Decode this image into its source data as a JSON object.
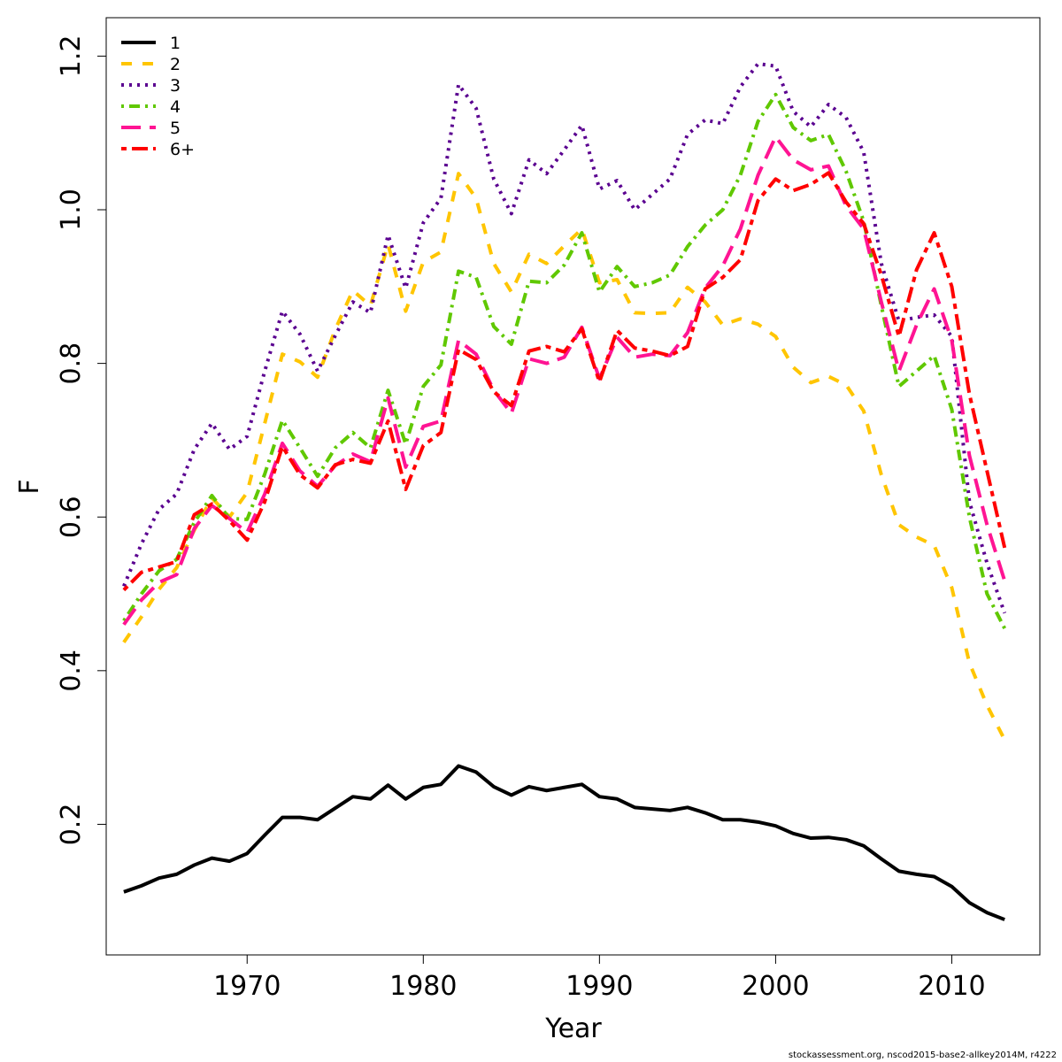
{
  "chart_data": {
    "type": "line",
    "title": "",
    "xlabel": "Year",
    "ylabel": "F",
    "xlim": [
      1962,
      2015
    ],
    "ylim": [
      0.03,
      1.25
    ],
    "x_ticks": [
      1970,
      1980,
      1990,
      2000,
      2010
    ],
    "x_tick_labels": [
      "1970",
      "1980",
      "1990",
      "2000",
      "2010"
    ],
    "y_ticks": [
      0.2,
      0.4,
      0.6,
      0.8,
      1.0,
      1.2
    ],
    "y_tick_labels": [
      "0.2",
      "0.4",
      "0.6",
      "0.8",
      "1.0",
      "1.2"
    ],
    "grid": false,
    "legend_position": "top-left",
    "x": [
      1963,
      1964,
      1965,
      1966,
      1967,
      1968,
      1969,
      1970,
      1971,
      1972,
      1973,
      1974,
      1975,
      1976,
      1977,
      1978,
      1979,
      1980,
      1981,
      1982,
      1983,
      1984,
      1985,
      1986,
      1987,
      1988,
      1989,
      1990,
      1991,
      1992,
      1993,
      1994,
      1995,
      1996,
      1997,
      1998,
      1999,
      2000,
      2001,
      2002,
      2003,
      2004,
      2005,
      2006,
      2007,
      2008,
      2009,
      2010,
      2011,
      2012,
      2013
    ],
    "series": [
      {
        "name": "1",
        "color": "#000000",
        "dash": "solid",
        "values": [
          0.112,
          0.12,
          0.13,
          0.135,
          0.147,
          0.156,
          0.152,
          0.162,
          0.186,
          0.209,
          0.209,
          0.206,
          0.221,
          0.236,
          0.233,
          0.251,
          0.233,
          0.248,
          0.252,
          0.276,
          0.268,
          0.249,
          0.238,
          0.249,
          0.244,
          0.248,
          0.252,
          0.236,
          0.233,
          0.222,
          0.22,
          0.218,
          0.222,
          0.215,
          0.206,
          0.206,
          0.203,
          0.198,
          0.188,
          0.182,
          0.183,
          0.18,
          0.172,
          0.155,
          0.139,
          0.135,
          0.132,
          0.119,
          0.098,
          0.085,
          0.076
        ]
      },
      {
        "name": "2",
        "color": "#ffc500",
        "dash": "dashed",
        "values": [
          0.437,
          0.47,
          0.506,
          0.534,
          0.583,
          0.625,
          0.6,
          0.632,
          0.722,
          0.812,
          0.802,
          0.782,
          0.844,
          0.895,
          0.875,
          0.955,
          0.868,
          0.932,
          0.945,
          1.047,
          1.015,
          0.93,
          0.893,
          0.942,
          0.93,
          0.953,
          0.975,
          0.905,
          0.909,
          0.866,
          0.865,
          0.866,
          0.899,
          0.88,
          0.85,
          0.858,
          0.851,
          0.835,
          0.795,
          0.775,
          0.783,
          0.772,
          0.738,
          0.655,
          0.59,
          0.574,
          0.563,
          0.508,
          0.41,
          0.355,
          0.31
        ]
      },
      {
        "name": "3",
        "color": "#5a0090",
        "dash": "dotted",
        "values": [
          0.51,
          0.565,
          0.61,
          0.63,
          0.688,
          0.722,
          0.688,
          0.705,
          0.79,
          0.868,
          0.838,
          0.79,
          0.836,
          0.88,
          0.866,
          0.967,
          0.898,
          0.983,
          1.015,
          1.163,
          1.132,
          1.04,
          0.995,
          1.065,
          1.047,
          1.078,
          1.11,
          1.027,
          1.038,
          1.0,
          1.02,
          1.04,
          1.098,
          1.117,
          1.112,
          1.16,
          1.19,
          1.187,
          1.128,
          1.108,
          1.137,
          1.12,
          1.075,
          0.93,
          0.855,
          0.86,
          0.863,
          0.835,
          0.62,
          0.54,
          0.475
        ]
      },
      {
        "name": "4",
        "color": "#60c800",
        "dash": "dashdot",
        "values": [
          0.465,
          0.5,
          0.53,
          0.545,
          0.593,
          0.628,
          0.598,
          0.597,
          0.656,
          0.726,
          0.69,
          0.653,
          0.69,
          0.71,
          0.69,
          0.765,
          0.695,
          0.77,
          0.798,
          0.92,
          0.912,
          0.848,
          0.825,
          0.907,
          0.905,
          0.928,
          0.97,
          0.893,
          0.926,
          0.9,
          0.905,
          0.915,
          0.952,
          0.98,
          1.0,
          1.045,
          1.115,
          1.15,
          1.107,
          1.09,
          1.098,
          1.05,
          0.985,
          0.875,
          0.77,
          0.79,
          0.81,
          0.74,
          0.6,
          0.5,
          0.455
        ]
      },
      {
        "name": "5",
        "color": "#ff1493",
        "dash": "longdash",
        "values": [
          0.46,
          0.492,
          0.515,
          0.525,
          0.585,
          0.615,
          0.598,
          0.58,
          0.63,
          0.696,
          0.66,
          0.64,
          0.667,
          0.682,
          0.672,
          0.755,
          0.665,
          0.718,
          0.725,
          0.83,
          0.812,
          0.765,
          0.735,
          0.806,
          0.8,
          0.808,
          0.847,
          0.78,
          0.834,
          0.808,
          0.812,
          0.81,
          0.84,
          0.898,
          0.927,
          0.975,
          1.045,
          1.095,
          1.065,
          1.052,
          1.057,
          1.005,
          0.975,
          0.88,
          0.79,
          0.85,
          0.897,
          0.83,
          0.68,
          0.59,
          0.517
        ]
      },
      {
        "name": "6+",
        "color": "#ff0000",
        "dash": "twodash",
        "values": [
          0.505,
          0.528,
          0.535,
          0.542,
          0.603,
          0.617,
          0.595,
          0.57,
          0.62,
          0.692,
          0.655,
          0.638,
          0.668,
          0.675,
          0.67,
          0.725,
          0.636,
          0.693,
          0.71,
          0.818,
          0.805,
          0.763,
          0.745,
          0.816,
          0.822,
          0.815,
          0.845,
          0.776,
          0.843,
          0.82,
          0.816,
          0.81,
          0.822,
          0.897,
          0.912,
          0.935,
          1.012,
          1.04,
          1.025,
          1.033,
          1.048,
          1.01,
          0.982,
          0.915,
          0.835,
          0.922,
          0.97,
          0.9,
          0.76,
          0.66,
          0.56
        ]
      }
    ]
  },
  "footer": {
    "note": "stockassessment.org, nscod2015-base2-allkey2014M, r4222"
  }
}
